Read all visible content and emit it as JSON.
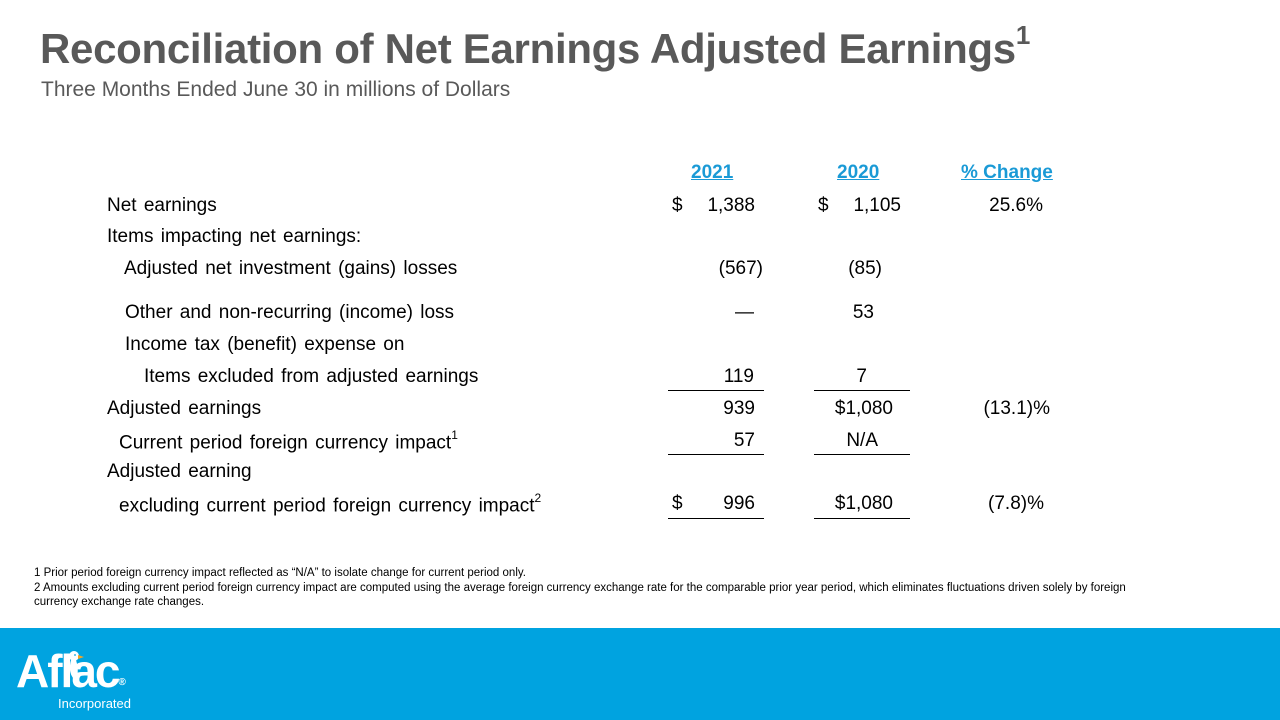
{
  "slide": {
    "title": "Reconciliation of Net Earnings Adjusted Earnings",
    "title_superscript": "1",
    "subtitle": "Three Months Ended June 30 in millions of Dollars"
  },
  "table": {
    "headers": {
      "year1": "2021",
      "year2": "2020",
      "change": "% Change"
    },
    "rows": {
      "net_earnings": {
        "label": "Net earnings",
        "y2021_currency": "$",
        "y2021": "1,388",
        "y2020_currency": "$",
        "y2020": "1,105",
        "change": "25.6%"
      },
      "items_impacting": {
        "label": "Items impacting net earnings:"
      },
      "investment": {
        "label": "Adjusted net investment (gains) losses",
        "y2021": "(567)",
        "y2020": "(85)"
      },
      "other": {
        "label": "Other and non-recurring (income) loss",
        "y2021": "—",
        "y2020": "53"
      },
      "income_tax": {
        "label": "Income tax (benefit) expense on"
      },
      "items_excluded": {
        "label": "Items excluded from adjusted earnings",
        "y2021": "119",
        "y2020": "7"
      },
      "adjusted": {
        "label": "Adjusted earnings",
        "y2021": "939",
        "y2020": "$1,080",
        "change": "(13.1)%"
      },
      "fx_impact": {
        "label": "Current period foreign currency impact",
        "label_superscript": "1",
        "y2021": "57",
        "y2020": "N/A"
      },
      "adjusted_excl_1": {
        "label": "Adjusted earning"
      },
      "adjusted_excl_2": {
        "label": "excluding current period foreign currency impact",
        "label_superscript": "2",
        "y2021_currency": "$",
        "y2021": "996",
        "y2020": "$1,080",
        "change": "(7.8)%"
      }
    }
  },
  "footnotes": {
    "note1": "1 Prior period foreign currency impact reflected as “N/A” to isolate change for current period only.",
    "note2": "2 Amounts excluding current period foreign currency impact are computed using the average foreign currency exchange rate for the comparable prior year period, which eliminates fluctuations driven solely by foreign currency exchange rate changes."
  },
  "logo": {
    "wordmark": "Aflac",
    "registered": "®",
    "tagline": "Incorporated"
  },
  "colors": {
    "title": "#595959",
    "accent": "#1a9ad6",
    "footer": "#00a3e0"
  }
}
